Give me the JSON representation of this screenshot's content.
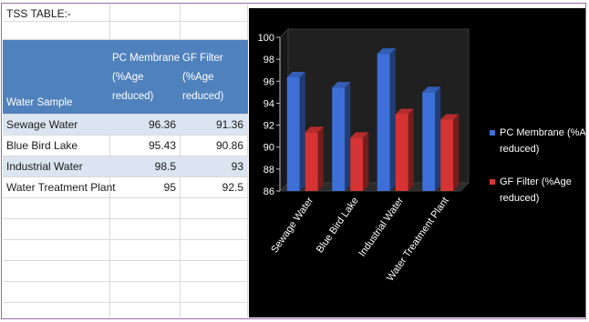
{
  "sheet": {
    "title": "TSS TABLE:-",
    "headers": {
      "sample": "Water Sample",
      "pc": [
        "PC Membrane",
        "(%Age",
        "reduced)"
      ],
      "gf": [
        "GF Filter",
        "(%Age",
        "reduced)"
      ]
    },
    "rows": [
      {
        "sample": "Sewage Water",
        "pc": "96.36",
        "gf": "91.36"
      },
      {
        "sample": "Blue Bird Lake",
        "pc": "95.43",
        "gf": "90.86"
      },
      {
        "sample": "Industrial Water",
        "pc": "98.5",
        "gf": "93"
      },
      {
        "sample": "Water Treatment Plant",
        "pc": "95",
        "gf": "92.5"
      }
    ]
  },
  "colors": {
    "header_bg": "#4f81bd",
    "band_bg": "#dbe5f1",
    "chart_bg": "#000000",
    "pc_series": "#3d6fd6",
    "gf_series": "#d63434"
  },
  "chart_data": {
    "type": "bar",
    "categories": [
      "Sewage Water",
      "Blue Bird Lake",
      "Industrial Water",
      "Water Treatment Plant"
    ],
    "series": [
      {
        "name": "PC Membrane (%Age reduced)",
        "values": [
          96.36,
          95.43,
          98.5,
          95
        ]
      },
      {
        "name": "GF Filter (%Age reduced)",
        "values": [
          91.36,
          90.86,
          93,
          92.5
        ]
      }
    ],
    "title": "",
    "xlabel": "",
    "ylabel": "",
    "ylim": [
      86,
      100
    ],
    "yticks": [
      "86",
      "88",
      "90",
      "92",
      "94",
      "96",
      "98",
      "100"
    ],
    "legend_lines": [
      [
        "PC Membrane  (%Age",
        "reduced)"
      ],
      [
        "GF Filter    (%Age",
        "reduced)"
      ]
    ],
    "legend_position": "right",
    "grid": false,
    "style": "3d clustered column"
  }
}
